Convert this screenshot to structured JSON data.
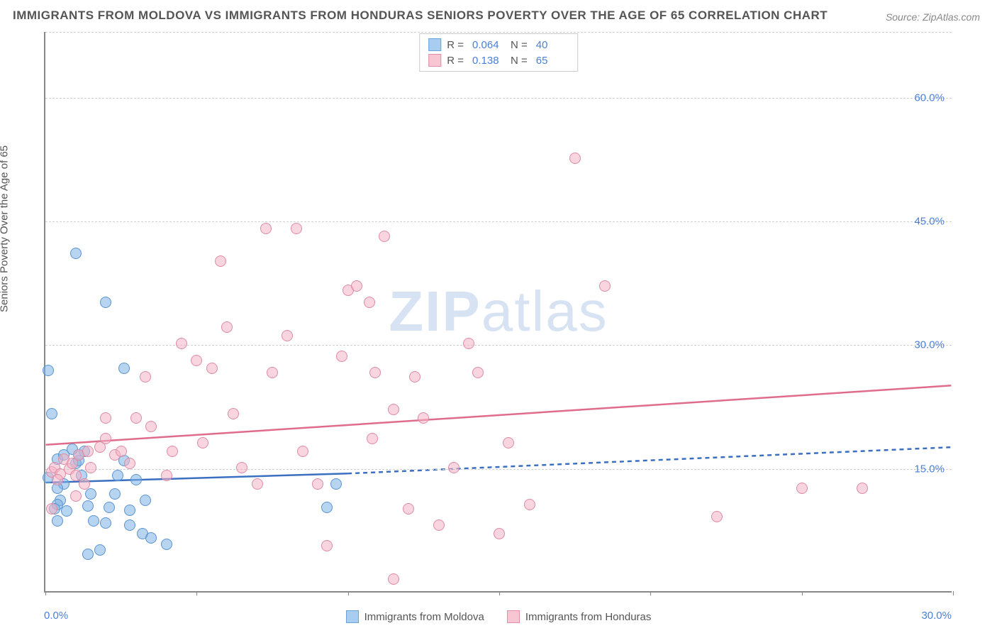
{
  "title": "IMMIGRANTS FROM MOLDOVA VS IMMIGRANTS FROM HONDURAS SENIORS POVERTY OVER THE AGE OF 65 CORRELATION CHART",
  "source": "Source: ZipAtlas.com",
  "y_axis_label": "Seniors Poverty Over the Age of 65",
  "watermark_bold": "ZIP",
  "watermark_thin": "atlas",
  "chart": {
    "type": "scatter",
    "xlim": [
      0,
      30
    ],
    "ylim": [
      0,
      68
    ],
    "x_ticks": [
      0,
      5,
      10,
      15,
      20,
      25,
      30
    ],
    "x_tick_labels_shown": {
      "left": "0.0%",
      "right": "30.0%"
    },
    "y_ticks": [
      15,
      30,
      45,
      60
    ],
    "y_tick_labels": [
      "15.0%",
      "30.0%",
      "45.0%",
      "60.0%"
    ],
    "grid_y": [
      15,
      30,
      45,
      60,
      68
    ],
    "background_color": "#ffffff",
    "grid_color": "#d0d0d0",
    "axis_color": "#888888",
    "tick_label_color": "#4a7fd8",
    "series": [
      {
        "name": "Immigrants from Moldova",
        "color_fill": "#a8cdf0",
        "color_stroke": "#5a94d0",
        "trend_color": "#3b6fc2",
        "R": "0.064",
        "N": "40",
        "trend": {
          "x1": 0,
          "y1": 13.2,
          "x2": 10,
          "y2": 14.3,
          "dash_x2": 30,
          "dash_y2": 17.5
        },
        "points": [
          [
            0.1,
            26.8
          ],
          [
            0.2,
            21.5
          ],
          [
            0.1,
            13.8
          ],
          [
            0.6,
            13.0
          ],
          [
            0.5,
            11.0
          ],
          [
            0.4,
            10.5
          ],
          [
            0.3,
            10.0
          ],
          [
            0.7,
            9.7
          ],
          [
            1.0,
            15.5
          ],
          [
            1.1,
            15.8
          ],
          [
            1.3,
            17.0
          ],
          [
            1.2,
            14.0
          ],
          [
            1.4,
            10.3
          ],
          [
            1.6,
            8.5
          ],
          [
            1.5,
            11.8
          ],
          [
            1.8,
            5.0
          ],
          [
            2.0,
            8.3
          ],
          [
            2.1,
            10.2
          ],
          [
            2.3,
            11.8
          ],
          [
            2.6,
            15.8
          ],
          [
            2.6,
            27.0
          ],
          [
            2.8,
            9.8
          ],
          [
            2.8,
            8.0
          ],
          [
            3.0,
            13.5
          ],
          [
            3.2,
            7.0
          ],
          [
            3.3,
            11.0
          ],
          [
            3.5,
            6.5
          ],
          [
            4.0,
            5.7
          ],
          [
            2.0,
            35.0
          ],
          [
            1.0,
            41.0
          ],
          [
            1.1,
            16.5
          ],
          [
            0.4,
            16.0
          ],
          [
            0.6,
            16.5
          ],
          [
            0.9,
            17.2
          ],
          [
            1.4,
            4.5
          ],
          [
            2.4,
            14.0
          ],
          [
            0.4,
            8.5
          ],
          [
            0.4,
            12.5
          ],
          [
            9.3,
            10.2
          ],
          [
            9.6,
            13.0
          ]
        ]
      },
      {
        "name": "Immigrants from Honduras",
        "color_fill": "#f7c6d2",
        "color_stroke": "#de8aa4",
        "trend_color": "#e06c8c",
        "R": "0.138",
        "N": "65",
        "trend": {
          "x1": 0,
          "y1": 17.8,
          "x2": 30,
          "y2": 25.0
        },
        "points": [
          [
            0.2,
            14.5
          ],
          [
            0.3,
            15.0
          ],
          [
            0.5,
            14.2
          ],
          [
            0.4,
            13.5
          ],
          [
            0.6,
            16.0
          ],
          [
            0.8,
            14.8
          ],
          [
            0.9,
            15.5
          ],
          [
            1.0,
            14.0
          ],
          [
            1.1,
            16.5
          ],
          [
            1.0,
            11.5
          ],
          [
            1.3,
            13.0
          ],
          [
            1.4,
            17.0
          ],
          [
            1.5,
            15.0
          ],
          [
            1.8,
            17.5
          ],
          [
            2.0,
            18.5
          ],
          [
            2.0,
            21.0
          ],
          [
            2.3,
            16.5
          ],
          [
            2.5,
            17.0
          ],
          [
            2.8,
            15.5
          ],
          [
            3.0,
            21.0
          ],
          [
            3.3,
            26.0
          ],
          [
            3.5,
            20.0
          ],
          [
            4.0,
            14.0
          ],
          [
            4.2,
            17.0
          ],
          [
            4.5,
            30.0
          ],
          [
            5.0,
            28.0
          ],
          [
            5.2,
            18.0
          ],
          [
            5.5,
            27.0
          ],
          [
            6.0,
            32.0
          ],
          [
            6.2,
            21.5
          ],
          [
            6.5,
            15.0
          ],
          [
            7.0,
            13.0
          ],
          [
            7.3,
            44.0
          ],
          [
            7.5,
            26.5
          ],
          [
            8.0,
            31.0
          ],
          [
            8.3,
            44.0
          ],
          [
            8.5,
            17.0
          ],
          [
            9.0,
            13.0
          ],
          [
            9.3,
            5.5
          ],
          [
            9.8,
            28.5
          ],
          [
            10.0,
            36.5
          ],
          [
            10.3,
            37.0
          ],
          [
            10.7,
            35.0
          ],
          [
            10.8,
            18.5
          ],
          [
            10.9,
            26.5
          ],
          [
            11.2,
            43.0
          ],
          [
            11.5,
            22.0
          ],
          [
            11.5,
            1.5
          ],
          [
            12.2,
            26.0
          ],
          [
            12.5,
            21.0
          ],
          [
            13.0,
            8.0
          ],
          [
            13.5,
            15.0
          ],
          [
            14.0,
            30.0
          ],
          [
            14.3,
            26.5
          ],
          [
            15.0,
            7.0
          ],
          [
            15.3,
            18.0
          ],
          [
            16.0,
            10.5
          ],
          [
            17.5,
            52.5
          ],
          [
            18.5,
            37.0
          ],
          [
            22.2,
            9.0
          ],
          [
            25.0,
            12.5
          ],
          [
            27.0,
            12.5
          ],
          [
            5.8,
            40.0
          ],
          [
            12.0,
            10.0
          ],
          [
            0.2,
            10.0
          ]
        ]
      }
    ]
  }
}
